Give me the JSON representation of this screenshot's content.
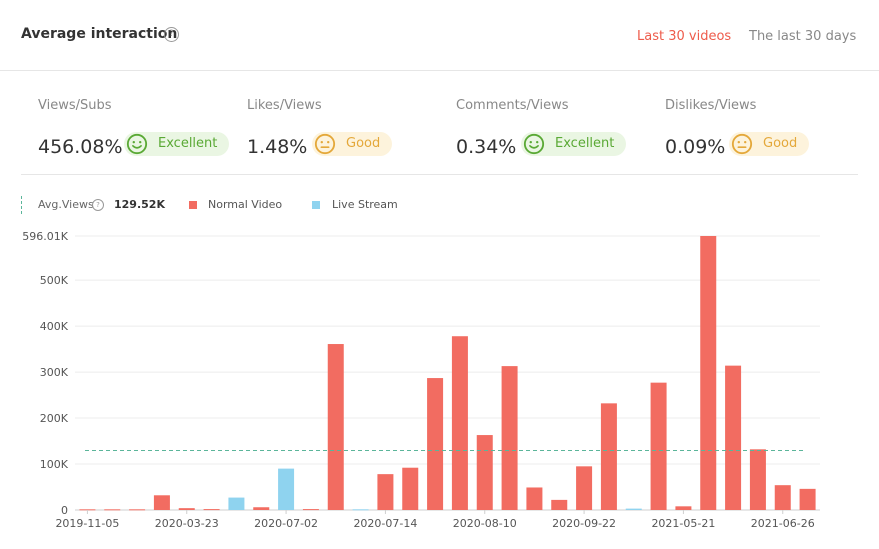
{
  "header": {
    "title": "Average interaction",
    "help_icon": "question-circle-icon",
    "tabs": [
      {
        "label": "Last 30 videos",
        "active": true
      },
      {
        "label": "The last 30 days",
        "active": false
      }
    ]
  },
  "colors": {
    "accent": "#ee5b4b",
    "normal_video": "#f26c61",
    "live_stream": "#8fd3ef",
    "average_line": "#5bb59a",
    "excellent": "#5aa935",
    "good": "#e4a83a"
  },
  "metrics": [
    {
      "label": "Views/Subs",
      "value": "456.08%",
      "rating": "Excellent",
      "icon": "smile-face-icon"
    },
    {
      "label": "Likes/Views",
      "value": "1.48%",
      "rating": "Good",
      "icon": "neutral-face-icon"
    },
    {
      "label": "Comments/Views",
      "value": "0.34%",
      "rating": "Excellent",
      "icon": "smile-face-icon"
    },
    {
      "label": "Dislikes/Views",
      "value": "0.09%",
      "rating": "Good",
      "icon": "neutral-face-icon"
    }
  ],
  "legend": {
    "avg_label": "Avg.Views",
    "avg_value": "129.52K",
    "normal_label": "Normal Video",
    "live_label": "Live Stream"
  },
  "chart_data": {
    "type": "bar",
    "average": 129520,
    "ylim": [
      0,
      596010
    ],
    "yticks": [
      {
        "value": 0,
        "label": "0"
      },
      {
        "value": 100000,
        "label": "100K"
      },
      {
        "value": 200000,
        "label": "200K"
      },
      {
        "value": 300000,
        "label": "300K"
      },
      {
        "value": 400000,
        "label": "400K"
      },
      {
        "value": 500000,
        "label": "500K"
      },
      {
        "value": 596010,
        "label": "596.01K"
      }
    ],
    "xtick_labels": [
      {
        "index": 0,
        "label": "2019-11-05"
      },
      {
        "index": 4,
        "label": "2020-03-23"
      },
      {
        "index": 8,
        "label": "2020-07-02"
      },
      {
        "index": 12,
        "label": "2020-07-14"
      },
      {
        "index": 16,
        "label": "2020-08-10"
      },
      {
        "index": 20,
        "label": "2020-09-22"
      },
      {
        "index": 24,
        "label": "2021-05-21"
      },
      {
        "index": 28,
        "label": "2021-06-26"
      }
    ],
    "bars": [
      {
        "value": 1500,
        "kind": "normal"
      },
      {
        "value": 1500,
        "kind": "normal"
      },
      {
        "value": 1500,
        "kind": "normal"
      },
      {
        "value": 32000,
        "kind": "normal"
      },
      {
        "value": 4000,
        "kind": "normal"
      },
      {
        "value": 2000,
        "kind": "normal"
      },
      {
        "value": 27000,
        "kind": "live"
      },
      {
        "value": 6000,
        "kind": "normal"
      },
      {
        "value": 90000,
        "kind": "live"
      },
      {
        "value": 2000,
        "kind": "normal"
      },
      {
        "value": 361000,
        "kind": "normal"
      },
      {
        "value": 1500,
        "kind": "live"
      },
      {
        "value": 78000,
        "kind": "normal"
      },
      {
        "value": 92000,
        "kind": "normal"
      },
      {
        "value": 287000,
        "kind": "normal"
      },
      {
        "value": 378000,
        "kind": "normal"
      },
      {
        "value": 163000,
        "kind": "normal"
      },
      {
        "value": 313000,
        "kind": "normal"
      },
      {
        "value": 49000,
        "kind": "normal"
      },
      {
        "value": 22000,
        "kind": "normal"
      },
      {
        "value": 95000,
        "kind": "normal"
      },
      {
        "value": 232000,
        "kind": "normal"
      },
      {
        "value": 3000,
        "kind": "live"
      },
      {
        "value": 277000,
        "kind": "normal"
      },
      {
        "value": 8000,
        "kind": "normal"
      },
      {
        "value": 596010,
        "kind": "normal"
      },
      {
        "value": 314000,
        "kind": "normal"
      },
      {
        "value": 132000,
        "kind": "normal"
      },
      {
        "value": 54000,
        "kind": "normal"
      },
      {
        "value": 46000,
        "kind": "normal"
      }
    ]
  }
}
